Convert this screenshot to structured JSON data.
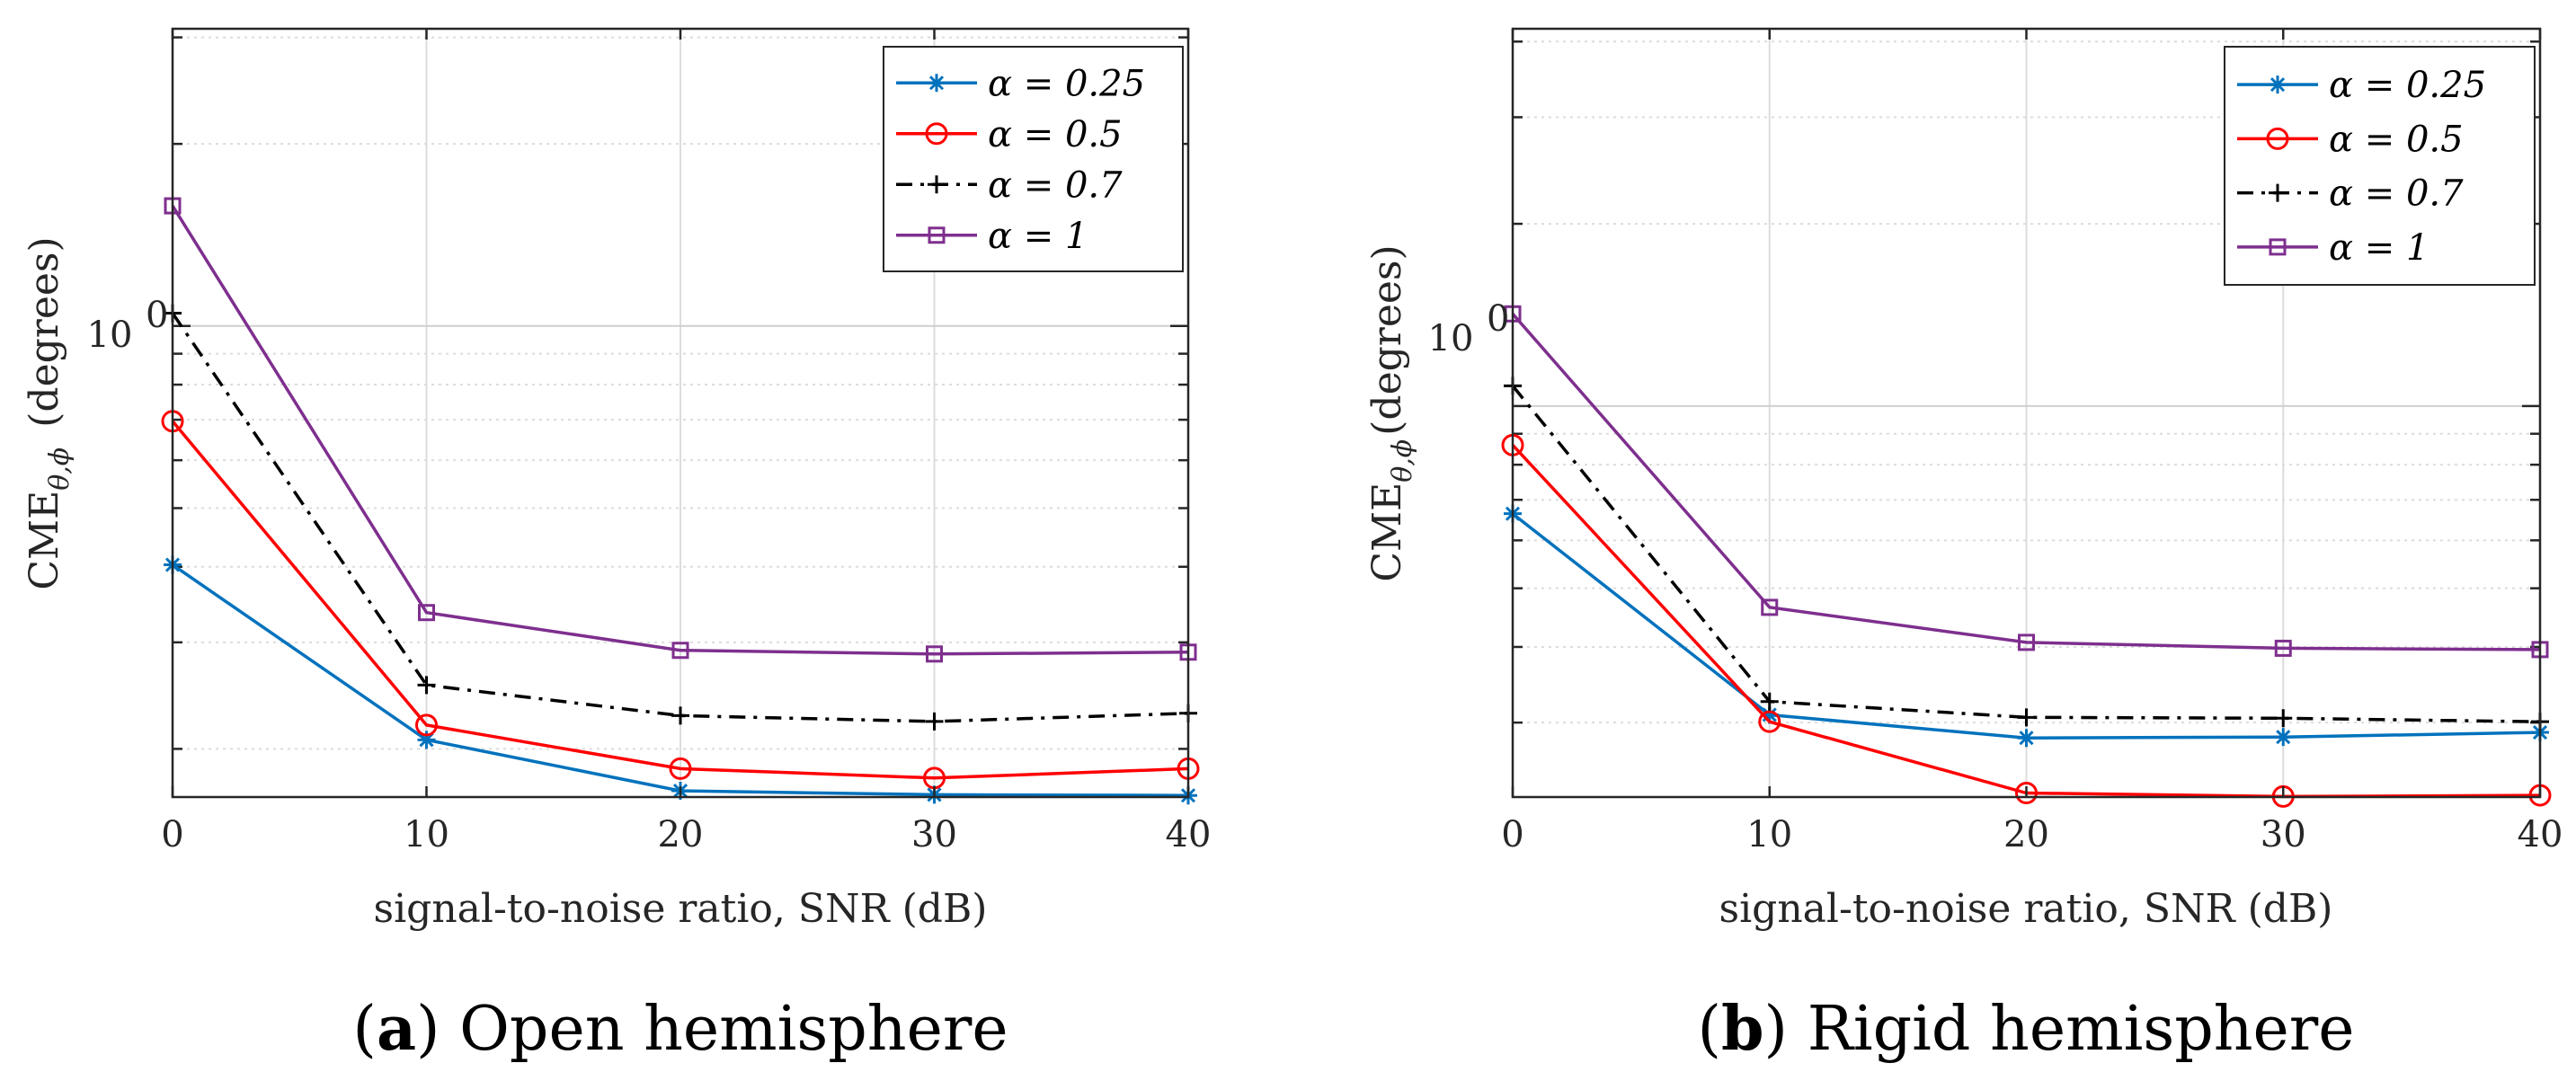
{
  "colors": {
    "alpha_0_25": "#0072BD",
    "alpha_0_5": "#FF0000",
    "alpha_0_7": "#000000",
    "alpha_1": "#7E2F8E",
    "grid": "#dcdcdc",
    "axis": "#262626"
  },
  "chart_data": [
    {
      "type": "line",
      "panel_letter": "a",
      "caption": "Open hemisphere",
      "xlabel": "signal-to-noise ratio, SNR (dB)",
      "ylabel_main": "CME",
      "ylabel_sub": "θ,ϕ",
      "ylabel_unit": "(degrees)",
      "x": [
        0,
        10,
        20,
        30,
        40
      ],
      "xticks": [
        "0",
        "10",
        "20",
        "30",
        "40"
      ],
      "ytick_label": "10",
      "ytick_exp": "0",
      "xlim": [
        0,
        40
      ],
      "ylim": [
        0.1665,
        3.1
      ],
      "yscale": "log",
      "grid": true,
      "legend_position": "top-right",
      "series": [
        {
          "name": "α = 0.25",
          "key": "alpha_0_25",
          "marker": "asterisk",
          "dash": "solid",
          "values": [
            0.403,
            0.207,
            0.1705,
            0.168,
            0.1675
          ]
        },
        {
          "name": "α = 0.5",
          "key": "alpha_0_5",
          "marker": "circle",
          "dash": "solid",
          "values": [
            0.696,
            0.219,
            0.1855,
            0.179,
            0.1855
          ]
        },
        {
          "name": "α = 0.7",
          "key": "alpha_0_7",
          "marker": "plus",
          "dash": "dashdot",
          "values": [
            1.05,
            0.255,
            0.227,
            0.222,
            0.229
          ]
        },
        {
          "name": "α = 1",
          "key": "alpha_1",
          "marker": "square",
          "dash": "solid",
          "values": [
            1.58,
            0.336,
            0.291,
            0.287,
            0.289
          ]
        }
      ]
    },
    {
      "type": "line",
      "panel_letter": "b",
      "caption": "Rigid hemisphere",
      "xlabel": "signal-to-noise ratio, SNR (dB)",
      "ylabel_main": "CME",
      "ylabel_sub": "θ,ϕ",
      "ylabel_unit": "(degrees)",
      "x": [
        0,
        10,
        20,
        30,
        40
      ],
      "xticks": [
        "0",
        "10",
        "20",
        "30",
        "40"
      ],
      "ytick_label": "10",
      "ytick_exp": "0",
      "xlim": [
        0,
        40
      ],
      "ylim": [
        0.226,
        4.2
      ],
      "yscale": "log",
      "grid": true,
      "legend_position": "top-right",
      "series": [
        {
          "name": "α = 0.25",
          "key": "alpha_0_25",
          "marker": "asterisk",
          "dash": "solid",
          "values": [
            0.664,
            0.309,
            0.283,
            0.284,
            0.289
          ]
        },
        {
          "name": "α = 0.5",
          "key": "alpha_0_5",
          "marker": "circle",
          "dash": "solid",
          "values": [
            0.862,
            0.301,
            0.2295,
            0.2265,
            0.2275
          ]
        },
        {
          "name": "α = 0.7",
          "key": "alpha_0_7",
          "marker": "plus",
          "dash": "dashdot",
          "values": [
            1.08,
            0.325,
            0.306,
            0.305,
            0.301
          ]
        },
        {
          "name": "α = 1",
          "key": "alpha_1",
          "marker": "square",
          "dash": "solid",
          "values": [
            1.42,
            0.465,
            0.407,
            0.398,
            0.396
          ]
        }
      ]
    }
  ]
}
